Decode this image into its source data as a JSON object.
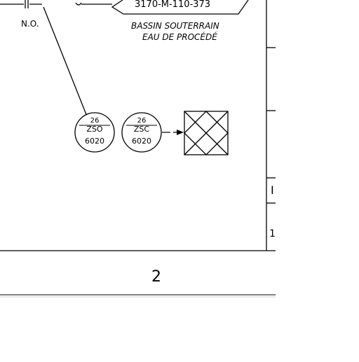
{
  "drawing": {
    "reference_tag": "3170-M-110-373",
    "normally_open_label": "N.O.",
    "basin_label_line1": "BASSIN SOUTERRAIN",
    "basin_label_line2": "EAU DE PROCÉDÉ",
    "zone_number": "2",
    "instruments": [
      {
        "loop": "26",
        "tag": "ZSO",
        "number": "6020"
      },
      {
        "loop": "26",
        "tag": "ZSC",
        "number": "6020"
      }
    ],
    "title_block_fragments": [
      "I",
      "1"
    ]
  }
}
